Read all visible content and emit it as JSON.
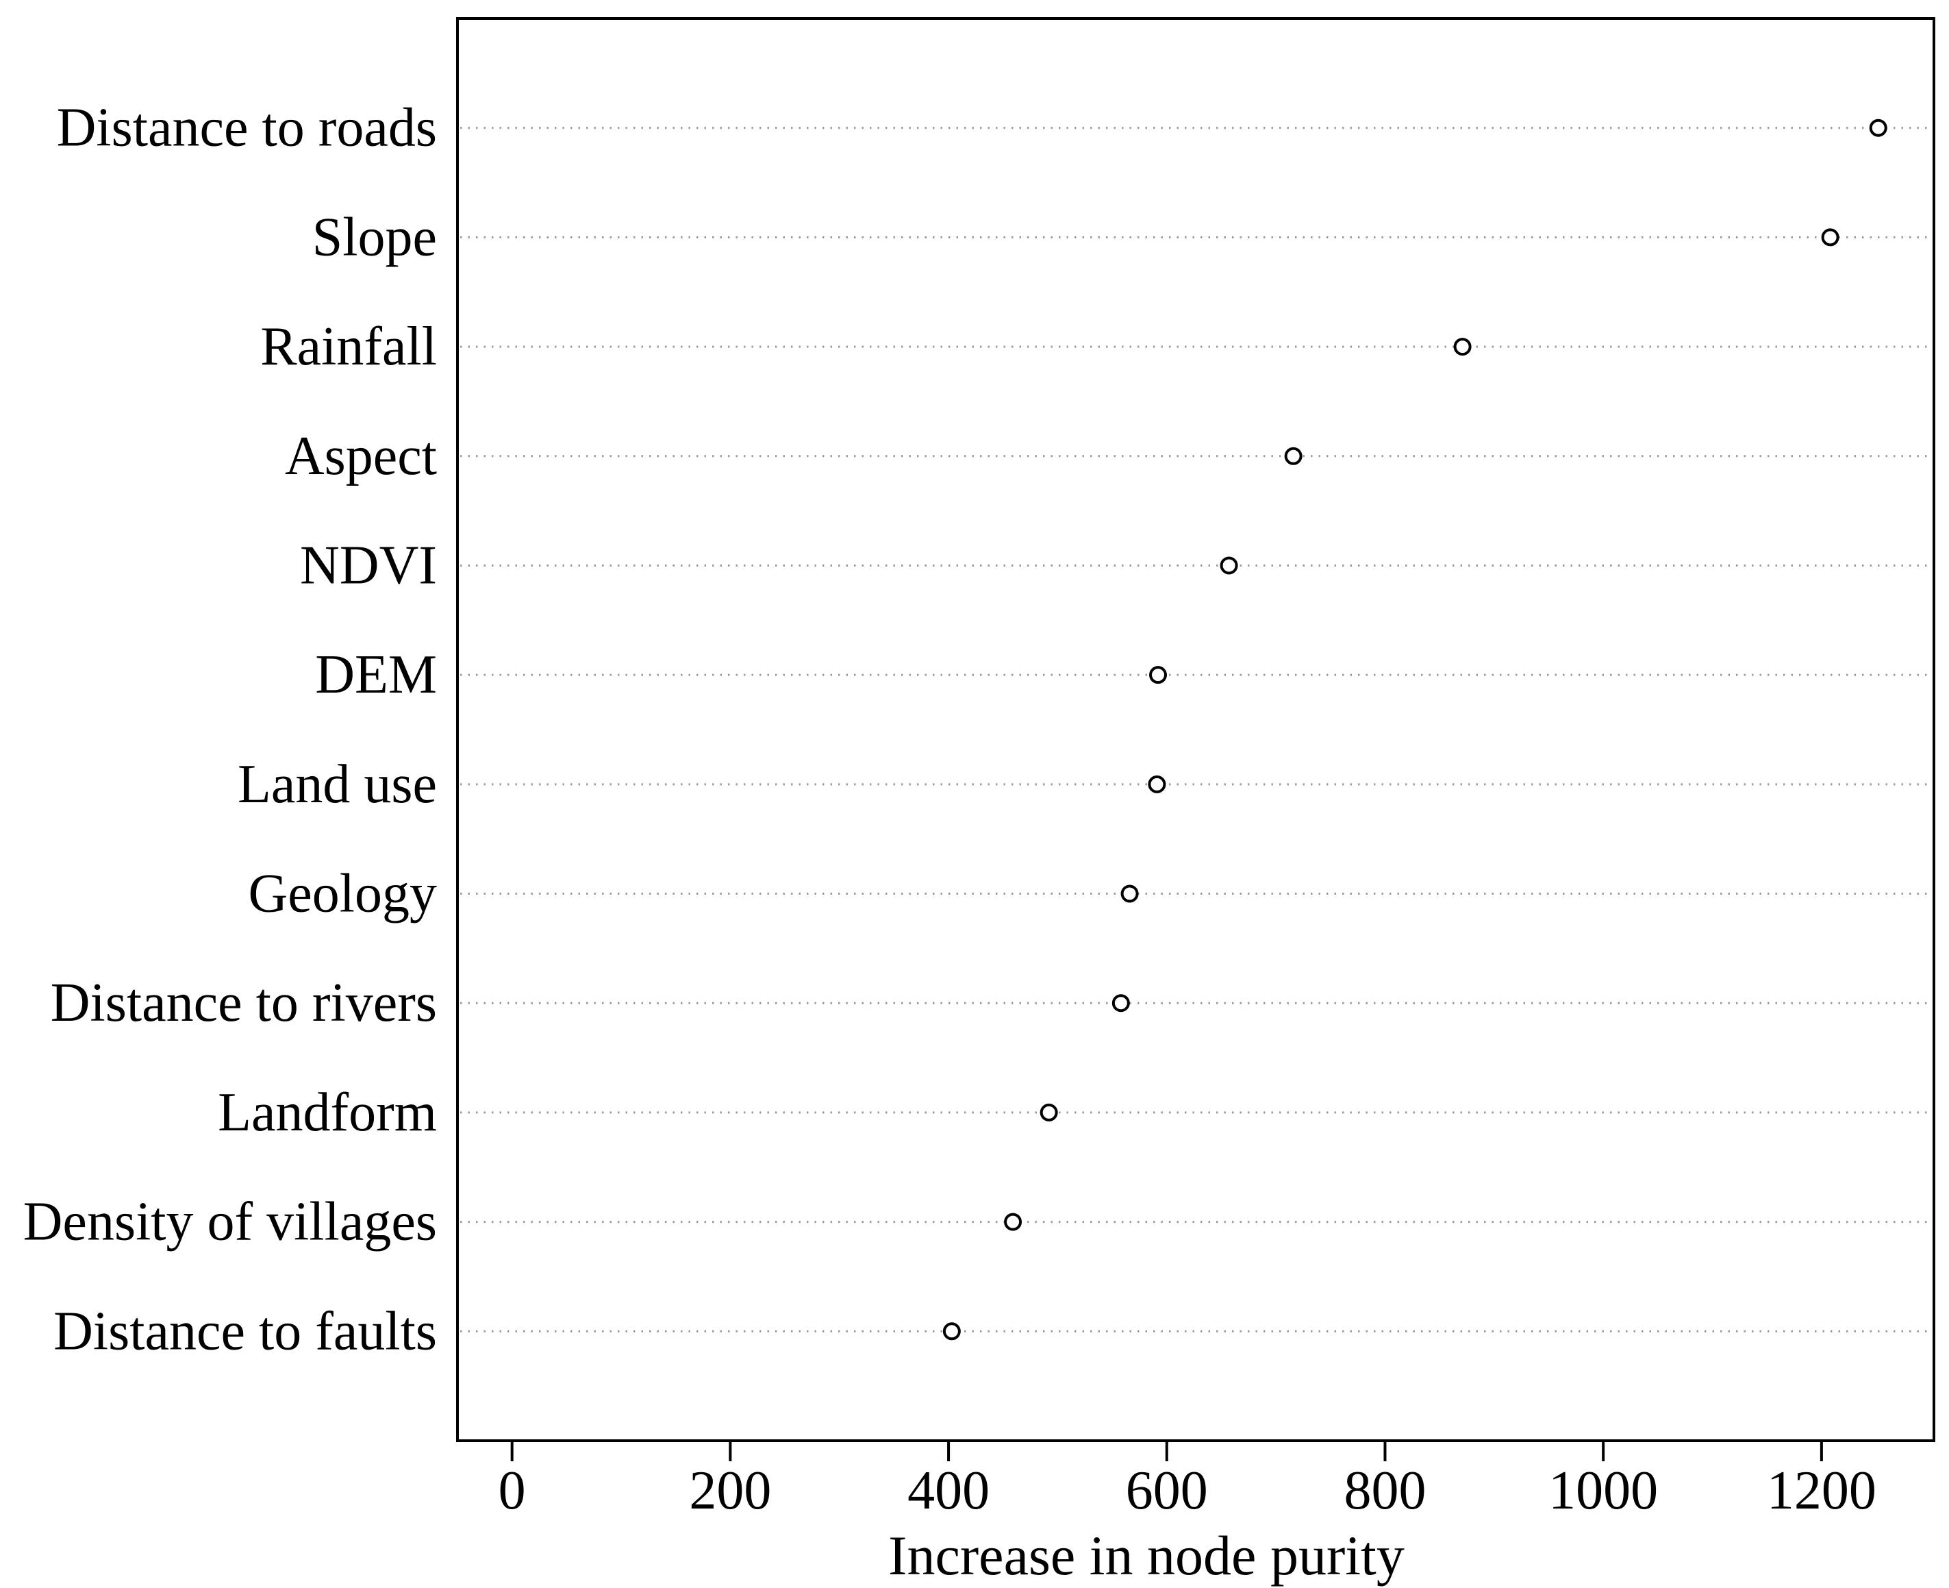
{
  "figure": {
    "background": "#ffffff",
    "border_color": "#000000",
    "grid_color": "#9a9a9a",
    "marker_stroke_color": "#000000",
    "marker_fill_color": "#ffffff"
  },
  "chart_data": {
    "type": "scatter",
    "variant": "horizontal-dot-plot",
    "title": "",
    "xlabel": "Increase in node purity",
    "ylabel": "",
    "categories": [
      "Distance to roads",
      "Slope",
      "Rainfall",
      "Aspect",
      "NDVI",
      "DEM",
      "Land use",
      "Geology",
      "Distance to rivers",
      "Landform",
      "Density of villages",
      "Distance to faults"
    ],
    "values": [
      1252,
      1208,
      871,
      716,
      657,
      592,
      591,
      566,
      558,
      492,
      459,
      403
    ],
    "x_ticks": [
      0,
      200,
      400,
      600,
      800,
      1000,
      1200
    ],
    "x_tick_labels": [
      "0",
      "200",
      "400",
      "600",
      "800",
      "1000",
      "1200"
    ],
    "xlim": [
      -50,
      1303
    ],
    "grid": "dotted-horizontal",
    "legend": "none",
    "marker": "open-circle"
  }
}
